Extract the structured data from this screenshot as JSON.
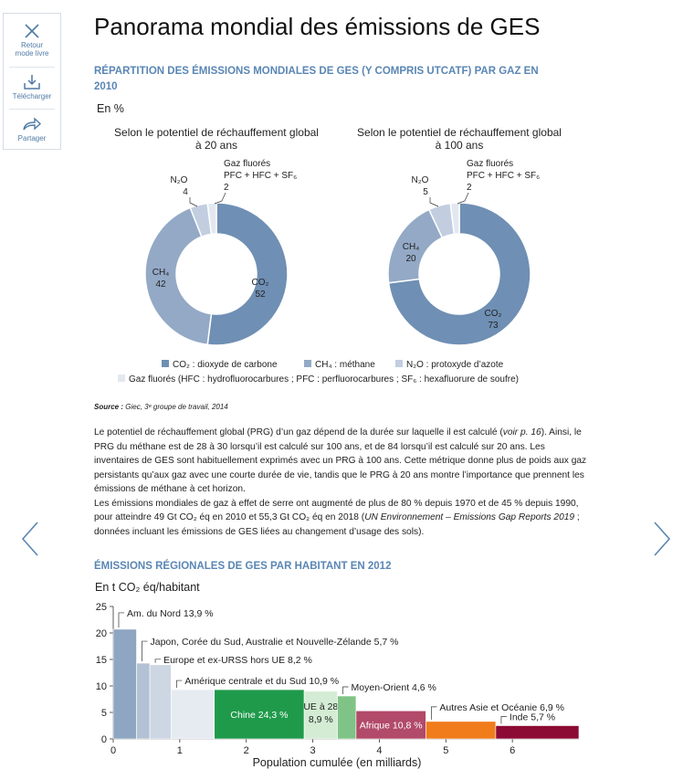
{
  "toolbar": {
    "back_label_1": "Retour",
    "back_label_2": "mode livre",
    "download_label": "Télécharger",
    "share_label": "Partager"
  },
  "page_title": "Panorama mondial des émissions de GES",
  "section1": {
    "title_line1": "RÉPARTITION DES ÉMISSIONS MONDIALES DE GES (Y COMPRIS UTCATF) PAR GAZ EN",
    "title_line2": "2010",
    "unit": "En %"
  },
  "colors": {
    "co2": "#6f8fb4",
    "ch4": "#93a9c6",
    "n2o": "#c2cee0",
    "fluor": "#e3e8f0",
    "title_blue": "#5a86b4"
  },
  "chart_data": [
    {
      "type": "pie",
      "title_line1": "Selon le potentiel de réchauffement global",
      "title_line2": "à 20 ans",
      "categories": [
        "CO₂",
        "CH₄",
        "N₂O",
        "Gaz fluorés PFC + HFC + SF₆"
      ],
      "values": [
        52,
        42,
        4,
        2
      ]
    },
    {
      "type": "pie",
      "title_line1": "Selon le potentiel de réchauffement global",
      "title_line2": "à 100 ans",
      "categories": [
        "CO₂",
        "CH₄",
        "N₂O",
        "Gaz fluorés PFC + HFC + SF₆"
      ],
      "values": [
        73,
        20,
        5,
        2
      ]
    },
    {
      "type": "bar",
      "unit_label": "En t CO₂ éq/habitant",
      "xlabel": "Population cumulée (en milliards)",
      "ylim": [
        0,
        25
      ],
      "xlim": [
        0,
        7
      ],
      "yticks": [
        "0",
        "5",
        "10",
        "15",
        "20",
        "25"
      ],
      "xticks": [
        "0",
        "1",
        "2",
        "3",
        "4",
        "5",
        "6"
      ],
      "bars": [
        {
          "label": "Am. du Nord 13,9 %",
          "population": 0.35,
          "value": 20.7,
          "color": "#8fa6c2"
        },
        {
          "label": "Japon, Corée du Sud, Australie et Nouvelle-Zélande 5,7 %",
          "population": 0.2,
          "value": 14.3,
          "color": "#b3c1d4"
        },
        {
          "label": "Europe et ex-URSS hors UE 8,2 %",
          "population": 0.32,
          "value": 14.0,
          "color": "#cdd6e3"
        },
        {
          "label": "Amérique centrale et du Sud 10,9 %",
          "population": 0.65,
          "value": 9.3,
          "color": "#e6ebf2"
        },
        {
          "label": "Chine 24,3 %",
          "population": 1.35,
          "value": 9.3,
          "color": "#1f9a4b"
        },
        {
          "label": "UE à 28 8,9 %",
          "population": 0.5,
          "value": 9.0,
          "color": "#d4ecd4"
        },
        {
          "label": "Moyen-Orient 4,6 %",
          "population": 0.28,
          "value": 8.1,
          "color": "#7fc486"
        },
        {
          "label": "Afrique 10,8 %",
          "population": 1.05,
          "value": 5.3,
          "color": "#b24a6a"
        },
        {
          "label": "Autres Asie et Océanie 6,9 %",
          "population": 1.05,
          "value": 3.3,
          "color": "#f07c1b"
        },
        {
          "label": "Inde 5,7 %",
          "population": 1.25,
          "value": 2.5,
          "color": "#8c0b34"
        }
      ]
    }
  ],
  "donut_labels": {
    "left": {
      "co2": "CO₂",
      "co2_val": "52",
      "ch4": "CH₄",
      "ch4_val": "42",
      "n2o": "N₂O",
      "n2o_val": "4",
      "fl1": "Gaz fluorés",
      "fl2": "PFC + HFC + SF₆",
      "fl_val": "2"
    },
    "right": {
      "co2": "CO₂",
      "co2_val": "73",
      "ch4": "CH₄",
      "ch4_val": "20",
      "n2o": "N₂O",
      "n2o_val": "5",
      "fl1": "Gaz fluorés",
      "fl2": "PFC + HFC + SF₆",
      "fl_val": "2"
    }
  },
  "legend": {
    "co2": "CO₂ : dioxyde de carbone",
    "ch4": "CH₄ : méthane",
    "n2o": "N₂O : protoxyde d’azote",
    "fluor": "Gaz fluorés (HFC : hydrofluorocarbures ; PFC : perfluorocarbures ; SF₆ : hexafluorure de soufre)"
  },
  "source": {
    "label": "Source :",
    "text": " Giec, 3ᵉ groupe de travail, 2014"
  },
  "paragraph": {
    "p1_a": "Le potentiel de réchauffement global (PRG) d’un gaz dépend de la durée sur laquelle il est calculé (",
    "p1_link": "voir p. 16",
    "p1_b": "). Ainsi, le PRG du méthane est de 28 à 30 lorsqu’il est calculé sur 100 ans, et de 84 lorsqu’il est calculé sur 20 ans. Les inventaires de GES sont habituellement exprimés avec un PRG à 100 ans. Cette métrique donne plus de poids aux gaz persistants qu’aux gaz avec une courte durée de vie, tandis que le PRG à 20 ans montre l’importance que prennent les émissions de méthane à cet horizon.",
    "p2_a": "Les émissions mondiales de gaz à effet de serre ont augmenté de plus de 80 % depuis 1970 et de 45 % depuis 1990, pour atteindre 49 Gt CO₂ éq en 2010 et 55,3 Gt CO₂ éq en 2018 (",
    "p2_it": "UN Environnement – Emissions Gap Reports 2019",
    "p2_b": " ; données incluant les émissions de GES liées au changement d’usage des sols)."
  },
  "section2": {
    "title": "ÉMISSIONS RÉGIONALES DE GES PAR HABITANT EN 2012"
  }
}
